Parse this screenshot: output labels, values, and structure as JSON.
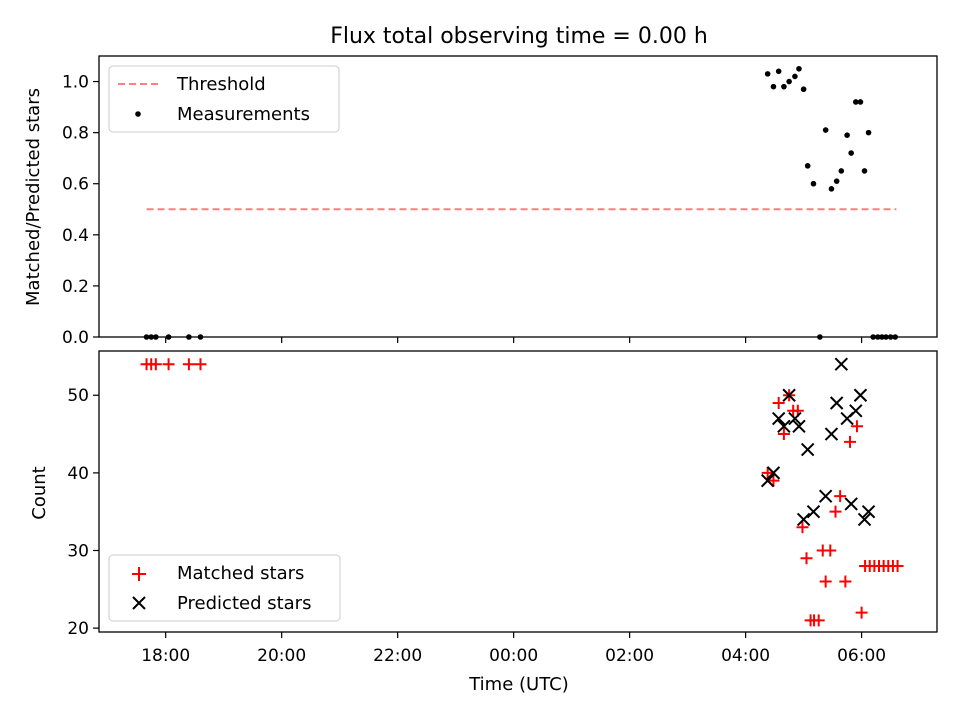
{
  "figure": {
    "title": "Flux total observing time = 0.00 h"
  },
  "colors": {
    "threshold": "#ff7f7f",
    "measurement": "#000000",
    "matched": "#ff0000",
    "predicted": "#000000"
  },
  "chart_data": [
    {
      "type": "scatter",
      "panel": "top",
      "title": "Flux total observing time = 0.00 h",
      "xlabel": "",
      "ylabel": "Matched/Predicted stars",
      "x_unit": "hours relative to 00:00 UTC",
      "xlim": [
        -7.15,
        7.3
      ],
      "ylim": [
        0,
        1.1
      ],
      "yticks": [
        0.0,
        0.2,
        0.4,
        0.6,
        0.8,
        1.0
      ],
      "ytick_labels": [
        "0.0",
        "0.2",
        "0.4",
        "0.6",
        "0.8",
        "1.0"
      ],
      "grid": false,
      "legend": {
        "placement": "top-left",
        "entries": [
          "Threshold",
          "Measurements"
        ]
      },
      "series": [
        {
          "name": "Threshold",
          "kind": "line",
          "style": "dashed",
          "color": "#ff7f7f",
          "x": [
            -6.33,
            6.6
          ],
          "y": [
            0.5,
            0.5
          ]
        },
        {
          "name": "Measurements",
          "kind": "scatter",
          "marker": "dot",
          "color": "#000000",
          "x": [
            -6.33,
            -6.25,
            -6.17,
            -5.95,
            -5.6,
            -5.4,
            4.38,
            4.48,
            4.57,
            4.66,
            4.75,
            4.85,
            4.92,
            5.0,
            5.07,
            5.17,
            5.28,
            5.38,
            5.48,
            5.57,
            5.65,
            5.75,
            5.82,
            5.9,
            5.98,
            6.05,
            6.12,
            6.2,
            6.28,
            6.35,
            6.42,
            6.5,
            6.58
          ],
          "y": [
            0.0,
            0.0,
            0.0,
            0.0,
            0.0,
            0.0,
            1.03,
            0.98,
            1.04,
            0.98,
            1.0,
            1.02,
            1.05,
            0.97,
            0.67,
            0.6,
            0.0,
            0.81,
            0.58,
            0.61,
            0.65,
            0.79,
            0.72,
            0.92,
            0.92,
            0.65,
            0.8,
            0.0,
            0.0,
            0.0,
            0.0,
            0.0,
            0.0
          ]
        }
      ]
    },
    {
      "type": "scatter",
      "panel": "bottom",
      "xlabel": "Time (UTC)",
      "ylabel": "Count",
      "x_unit": "hours relative to 00:00 UTC",
      "xlim": [
        -7.15,
        7.3
      ],
      "ylim": [
        19.5,
        55.7
      ],
      "xticks": [
        -6,
        -4,
        -2,
        0,
        2,
        4,
        6
      ],
      "xtick_labels": [
        "18:00",
        "20:00",
        "22:00",
        "00:00",
        "02:00",
        "04:00",
        "06:00"
      ],
      "yticks": [
        20,
        30,
        40,
        50
      ],
      "ytick_labels": [
        "20",
        "30",
        "40",
        "50"
      ],
      "grid": false,
      "legend": {
        "placement": "bottom-left",
        "entries": [
          "Matched stars",
          "Predicted stars"
        ]
      },
      "series": [
        {
          "name": "Matched stars",
          "marker": "plus",
          "color": "#ff0000",
          "x": [
            -6.33,
            -6.25,
            -6.17,
            -5.95,
            -5.6,
            -5.4,
            4.38,
            4.48,
            4.57,
            4.66,
            4.75,
            4.82,
            4.9,
            4.98,
            5.05,
            5.12,
            5.18,
            5.26,
            5.33,
            5.38,
            5.46,
            5.55,
            5.63,
            5.72,
            5.8,
            5.92,
            6.0,
            6.06,
            6.14,
            6.22,
            6.3,
            6.38,
            6.46,
            6.54,
            6.62
          ],
          "y": [
            54,
            54,
            54,
            54,
            54,
            54,
            40,
            39,
            49,
            45,
            50,
            48,
            48,
            33,
            29,
            21,
            21,
            21,
            30,
            26,
            30,
            35,
            37,
            26,
            44,
            46,
            22,
            28,
            28,
            28,
            28,
            28,
            28,
            28,
            28
          ]
        },
        {
          "name": "Predicted stars",
          "marker": "x",
          "color": "#000000",
          "x": [
            4.38,
            4.48,
            4.57,
            4.66,
            4.75,
            4.85,
            4.92,
            5.0,
            5.07,
            5.17,
            5.38,
            5.48,
            5.57,
            5.65,
            5.75,
            5.82,
            5.9,
            5.98,
            6.05,
            6.12
          ],
          "y": [
            39,
            40,
            47,
            46,
            50,
            47,
            46,
            34,
            43,
            35,
            37,
            45,
            49,
            54,
            47,
            36,
            48,
            50,
            34,
            35
          ]
        }
      ]
    }
  ]
}
